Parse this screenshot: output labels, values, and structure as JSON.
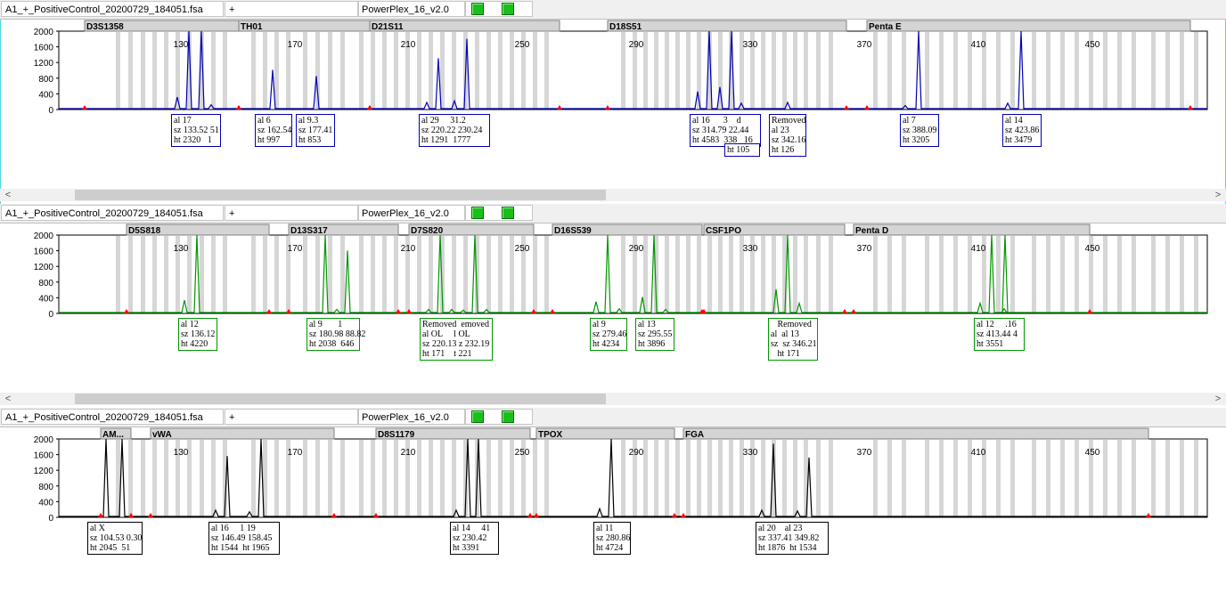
{
  "panels": [
    {
      "file": "A1_+_PositiveControl_20200729_184051.fsa",
      "plus": "+",
      "panel_name": "PowerPlex_16_v2.0",
      "color": "#0000b4",
      "markers": [
        {
          "name": "D3S1358",
          "start": 95,
          "end": 268
        },
        {
          "name": "TH01",
          "start": 268,
          "end": 415
        },
        {
          "name": "D21S11",
          "start": 415,
          "end": 628
        },
        {
          "name": "D18S51",
          "start": 682,
          "end": 950
        },
        {
          "name": "Penta E",
          "start": 973,
          "end": 1336
        }
      ],
      "peaks": [
        [
          199,
          15
        ],
        [
          212,
          100
        ],
        [
          226,
          100
        ],
        [
          237,
          5
        ],
        [
          306,
          50
        ],
        [
          355,
          42
        ],
        [
          479,
          8
        ],
        [
          492,
          65
        ],
        [
          510,
          10
        ],
        [
          524,
          90
        ],
        [
          783,
          22
        ],
        [
          796,
          100
        ],
        [
          808,
          28
        ],
        [
          821,
          100
        ],
        [
          832,
          7
        ],
        [
          884,
          8
        ],
        [
          1016,
          4
        ],
        [
          1031,
          100
        ],
        [
          1131,
          7
        ],
        [
          1146,
          100
        ]
      ],
      "labels": [
        {
          "x": 192,
          "w": 56,
          "lines": [
            "al 17",
            "sz 133.52 51",
            "ht 2320   1"
          ]
        },
        {
          "x": 286,
          "w": 42,
          "lines": [
            "al 6",
            "sz 162.54",
            "ht 997"
          ]
        },
        {
          "x": 332,
          "w": 44,
          "lines": [
            "al 9.3",
            "sz 177.41",
            "ht 853"
          ]
        },
        {
          "x": 470,
          "w": 80,
          "lines": [
            "al 29     31.2",
            "sz 220.22 230.24",
            "ht 1291  1777"
          ]
        },
        {
          "x": 774,
          "w": 80,
          "lines": [
            "al 16      3    d",
            "sz 314.79 22.44",
            "ht 4583  338   16"
          ]
        },
        {
          "x": 813,
          "w": 40,
          "lines": [
            "ht 105"
          ],
          "dy": 33
        },
        {
          "x": 863,
          "w": 42,
          "lines": [
            "Removed",
            "al 23",
            "sz 342.16",
            "ht 126"
          ]
        },
        {
          "x": 1010,
          "w": 44,
          "lines": [
            "al 7",
            "sz 388.09",
            "ht 3205"
          ]
        },
        {
          "x": 1125,
          "w": 44,
          "lines": [
            "al 14",
            "sz 423.86",
            "ht 3479"
          ]
        }
      ],
      "scroll": true
    },
    {
      "file": "A1_+_PositiveControl_20200729_184051.fsa",
      "plus": "+",
      "panel_name": "PowerPlex_16_v2.0",
      "color": "#009600",
      "markers": [
        {
          "name": "D5S818",
          "start": 142,
          "end": 302
        },
        {
          "name": "D13S317",
          "start": 324,
          "end": 447
        },
        {
          "name": "D7S820",
          "start": 459,
          "end": 599
        },
        {
          "name": "D16S539",
          "start": 620,
          "end": 788
        },
        {
          "name": "CSF1PO",
          "start": 790,
          "end": 948
        },
        {
          "name": "Penta D",
          "start": 958,
          "end": 1223
        }
      ],
      "peaks": [
        [
          207,
          16
        ],
        [
          221,
          100
        ],
        [
          365,
          100
        ],
        [
          378,
          4
        ],
        [
          390,
          80
        ],
        [
          481,
          4
        ],
        [
          494,
          100
        ],
        [
          507,
          4
        ],
        [
          520,
          3
        ],
        [
          533,
          100
        ],
        [
          546,
          4
        ],
        [
          669,
          14
        ],
        [
          682,
          100
        ],
        [
          695,
          5
        ],
        [
          721,
          20
        ],
        [
          734,
          100
        ],
        [
          747,
          4
        ],
        [
          871,
          30
        ],
        [
          884,
          100
        ],
        [
          897,
          12
        ],
        [
          1100,
          12
        ],
        [
          1113,
          100
        ],
        [
          1127,
          5
        ],
        [
          1128,
          100
        ]
      ],
      "labels": [
        {
          "x": 200,
          "w": 44,
          "lines": [
            "al 12",
            "sz 136.12",
            "ht 4220"
          ]
        },
        {
          "x": 344,
          "w": 60,
          "lines": [
            "al 9       1",
            "sz 180.98 88.82",
            "ht 2038  646"
          ]
        },
        {
          "x": 471,
          "w": 82,
          "lines": [
            "Removed  emoved",
            "al OL     l OL",
            "sz 220.13 z 232.19",
            "ht 171    t 221"
          ]
        },
        {
          "x": 662,
          "w": 42,
          "lines": [
            "al 9",
            "sz 279.46",
            "ht 4234"
          ]
        },
        {
          "x": 713,
          "w": 44,
          "lines": [
            "al 13",
            "sz 295.55",
            "ht 3896"
          ]
        },
        {
          "x": 862,
          "w": 56,
          "lines": [
            "   Removed",
            "al  al 13",
            "sz  sz 346.21",
            "   ht 171"
          ]
        },
        {
          "x": 1093,
          "w": 57,
          "lines": [
            "al 12     .16",
            "sz 413.44 4",
            "ht 3551"
          ]
        }
      ],
      "scroll": true
    },
    {
      "file": "A1_+_PositiveControl_20200729_184051.fsa",
      "plus": "+",
      "panel_name": "PowerPlex_16_v2.0",
      "color": "#000000",
      "markers": [
        {
          "name": "AM...",
          "start": 113,
          "end": 147
        },
        {
          "name": "vWA",
          "start": 169,
          "end": 375
        },
        {
          "name": "D8S1179",
          "start": 422,
          "end": 595
        },
        {
          "name": "TPOX",
          "start": 602,
          "end": 757
        },
        {
          "name": "FGA",
          "start": 767,
          "end": 1289
        }
      ],
      "peaks": [
        [
          119,
          100
        ],
        [
          137,
          100
        ],
        [
          242,
          8
        ],
        [
          255,
          78
        ],
        [
          280,
          6
        ],
        [
          293,
          100
        ],
        [
          512,
          8
        ],
        [
          525,
          100
        ],
        [
          537,
          100
        ],
        [
          673,
          10
        ],
        [
          686,
          100
        ],
        [
          855,
          8
        ],
        [
          868,
          94
        ],
        [
          895,
          7
        ],
        [
          908,
          76
        ]
      ],
      "labels": [
        {
          "x": 98,
          "w": 62,
          "lines": [
            "al X",
            "sz 104.53 0.30",
            "ht 2045  51"
          ]
        },
        {
          "x": 234,
          "w": 80,
          "lines": [
            "al 16     1 19",
            "sz 146.49 158.45",
            "ht 1544  ht 1965"
          ]
        },
        {
          "x": 505,
          "w": 55,
          "lines": [
            "al 14     41",
            "sz 230.42 ",
            "ht 3391  "
          ]
        },
        {
          "x": 666,
          "w": 42,
          "lines": [
            "al 11",
            "sz 280.86",
            "ht 4724"
          ]
        },
        {
          "x": 848,
          "w": 82,
          "lines": [
            "al 20    al 23",
            "sz 337.41 349.82",
            "ht 1876  ht 1534"
          ]
        }
      ],
      "scroll": false
    }
  ],
  "axis": {
    "x_ticks": [
      "130",
      "170",
      "210",
      "250",
      "290",
      "330",
      "370",
      "410",
      "450"
    ],
    "y_ticks": [
      "2000",
      "1600",
      "1200",
      "800",
      "400",
      "0"
    ],
    "scroll_left": "<",
    "scroll_right": ">"
  }
}
